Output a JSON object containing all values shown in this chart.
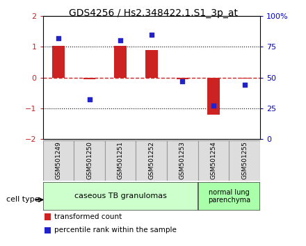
{
  "title": "GDS4256 / Hs2.348422.1.S1_3p_at",
  "samples": [
    "GSM501249",
    "GSM501250",
    "GSM501251",
    "GSM501252",
    "GSM501253",
    "GSM501254",
    "GSM501255"
  ],
  "transformed_count": [
    1.02,
    -0.05,
    1.02,
    0.9,
    -0.05,
    -1.22,
    -0.04
  ],
  "percentile_rank": [
    82,
    32,
    80,
    85,
    47,
    27,
    44
  ],
  "ylim": [
    -2,
    2
  ],
  "yticks_left": [
    -2,
    -1,
    0,
    1,
    2
  ],
  "yticks_right_vals": [
    0,
    25,
    50,
    75,
    100
  ],
  "group1_count": 5,
  "group2_count": 2,
  "group1_label": "caseous TB granulomas",
  "group2_label": "normal lung\nparenchyma",
  "cell_type_label": "cell type",
  "legend_red": "transformed count",
  "legend_blue": "percentile rank within the sample",
  "bar_color": "#cc2222",
  "dot_color": "#2222cc",
  "bg_color": "#ffffff",
  "plot_bg_color": "#ffffff",
  "group1_color": "#ccffcc",
  "group2_color": "#aaffaa",
  "tick_color_left": "#cc2222",
  "tick_color_right": "#0000cc",
  "zero_line_color": "#cc2222",
  "dotted_line_color": "#000000",
  "figsize": [
    4.4,
    3.54
  ],
  "dpi": 100
}
